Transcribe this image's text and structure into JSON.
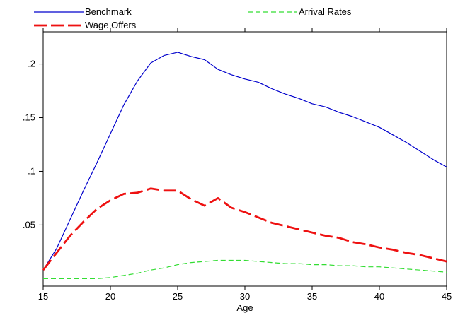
{
  "chart_data": {
    "type": "line",
    "title": "",
    "xlabel": "Age",
    "ylabel": "",
    "xlim": [
      15,
      45
    ],
    "ylim": [
      -0.007,
      0.23
    ],
    "grid": false,
    "legend_placement": "top",
    "x_ticks": [
      15,
      20,
      25,
      30,
      35,
      40,
      45
    ],
    "x_tick_labels": [
      "15",
      "20",
      "25",
      "30",
      "35",
      "40",
      "45"
    ],
    "y_ticks": [
      0.05,
      0.1,
      0.15,
      0.2
    ],
    "y_tick_labels": [
      ".05",
      ".1",
      ".15",
      ".2"
    ],
    "x": [
      15,
      16,
      17,
      18,
      19,
      20,
      21,
      22,
      23,
      24,
      25,
      26,
      27,
      28,
      29,
      30,
      31,
      32,
      33,
      34,
      35,
      36,
      37,
      38,
      39,
      40,
      41,
      42,
      43,
      44,
      45
    ],
    "series": [
      {
        "name": "Benchmark",
        "color": "#0000cc",
        "style": "solid",
        "values": [
          0.008,
          0.028,
          0.055,
          0.082,
          0.108,
          0.135,
          0.162,
          0.184,
          0.201,
          0.208,
          0.211,
          0.207,
          0.204,
          0.195,
          0.19,
          0.186,
          0.183,
          0.177,
          0.172,
          0.168,
          0.163,
          0.16,
          0.155,
          0.151,
          0.146,
          0.141,
          0.134,
          0.127,
          0.119,
          0.111,
          0.104
        ]
      },
      {
        "name": "Arrival Rates",
        "color": "#33dd33",
        "style": "dashed",
        "values": [
          0.0,
          0.0,
          0.0,
          0.0,
          0.0,
          0.001,
          0.003,
          0.005,
          0.008,
          0.01,
          0.013,
          0.015,
          0.016,
          0.017,
          0.017,
          0.017,
          0.016,
          0.015,
          0.014,
          0.014,
          0.013,
          0.013,
          0.012,
          0.012,
          0.011,
          0.011,
          0.01,
          0.009,
          0.008,
          0.007,
          0.006
        ]
      },
      {
        "name": "Wage Offers",
        "color": "#ee1111",
        "style": "longdash",
        "values": [
          0.008,
          0.024,
          0.04,
          0.053,
          0.065,
          0.073,
          0.079,
          0.08,
          0.084,
          0.082,
          0.082,
          0.074,
          0.068,
          0.075,
          0.066,
          0.062,
          0.057,
          0.052,
          0.049,
          0.046,
          0.043,
          0.04,
          0.038,
          0.034,
          0.032,
          0.029,
          0.027,
          0.024,
          0.022,
          0.019,
          0.016
        ]
      }
    ]
  }
}
